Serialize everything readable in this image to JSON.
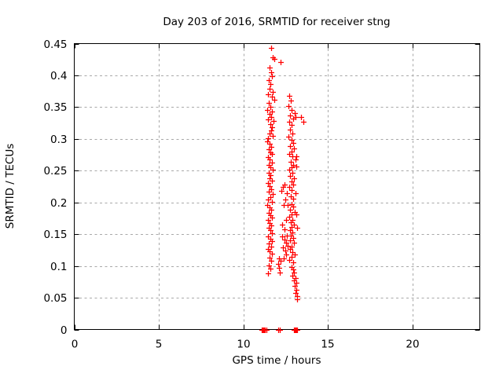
{
  "chart_data": {
    "type": "scatter",
    "title": "Day 203 of 2016, SRMTID for receiver stng",
    "xlabel": "GPS time / hours",
    "ylabel": "SRMTID / TECUs",
    "xlim": [
      0,
      24
    ],
    "ylim": [
      0,
      0.45
    ],
    "xticks": [
      0,
      5,
      10,
      15,
      20
    ],
    "yticks": [
      0,
      0.05,
      0.1,
      0.15,
      0.2,
      0.25,
      0.3,
      0.35,
      0.4,
      0.45
    ],
    "grid": true,
    "grid_style": "dashed",
    "grid_color": "#a8a8a8",
    "border_color": "#000000",
    "legend": false,
    "marker": "plus",
    "marker_color": "#ff0000",
    "marker_size": 7,
    "points": [
      [
        11.65,
        0.443
      ],
      [
        11.73,
        0.428
      ],
      [
        11.86,
        0.426
      ],
      [
        12.23,
        0.421
      ],
      [
        11.55,
        0.412
      ],
      [
        11.65,
        0.405
      ],
      [
        11.7,
        0.399
      ],
      [
        11.52,
        0.392
      ],
      [
        11.62,
        0.386
      ],
      [
        11.58,
        0.379
      ],
      [
        11.75,
        0.374
      ],
      [
        11.45,
        0.37
      ],
      [
        11.68,
        0.366
      ],
      [
        11.82,
        0.361
      ],
      [
        11.5,
        0.357
      ],
      [
        11.6,
        0.351
      ],
      [
        11.44,
        0.346
      ],
      [
        11.72,
        0.343
      ],
      [
        11.56,
        0.339
      ],
      [
        11.66,
        0.335
      ],
      [
        11.48,
        0.331
      ],
      [
        11.77,
        0.328
      ],
      [
        11.59,
        0.323
      ],
      [
        11.7,
        0.318
      ],
      [
        11.63,
        0.313
      ],
      [
        11.54,
        0.309
      ],
      [
        11.74,
        0.305
      ],
      [
        11.47,
        0.301
      ],
      [
        12.72,
        0.368
      ],
      [
        12.8,
        0.36
      ],
      [
        12.68,
        0.352
      ],
      [
        12.88,
        0.345
      ],
      [
        12.75,
        0.337
      ],
      [
        13.05,
        0.341
      ],
      [
        12.95,
        0.332
      ],
      [
        12.7,
        0.327
      ],
      [
        12.85,
        0.322
      ],
      [
        13.1,
        0.334
      ],
      [
        13.44,
        0.334
      ],
      [
        13.56,
        0.327
      ],
      [
        12.78,
        0.315
      ],
      [
        12.9,
        0.308
      ],
      [
        12.66,
        0.303
      ],
      [
        11.42,
        0.296
      ],
      [
        11.55,
        0.292
      ],
      [
        11.65,
        0.288
      ],
      [
        11.5,
        0.284
      ],
      [
        11.6,
        0.279
      ],
      [
        11.72,
        0.276
      ],
      [
        11.46,
        0.271
      ],
      [
        11.58,
        0.268
      ],
      [
        11.68,
        0.263
      ],
      [
        11.53,
        0.259
      ],
      [
        11.62,
        0.255
      ],
      [
        11.75,
        0.252
      ],
      [
        12.85,
        0.298
      ],
      [
        12.95,
        0.293
      ],
      [
        12.75,
        0.289
      ],
      [
        13.0,
        0.285
      ],
      [
        12.88,
        0.28
      ],
      [
        12.7,
        0.276
      ],
      [
        12.92,
        0.272
      ],
      [
        13.08,
        0.268
      ],
      [
        12.8,
        0.264
      ],
      [
        12.96,
        0.259
      ],
      [
        12.86,
        0.255
      ],
      [
        12.74,
        0.251
      ],
      [
        13.15,
        0.257
      ],
      [
        13.16,
        0.273
      ],
      [
        11.5,
        0.247
      ],
      [
        11.62,
        0.243
      ],
      [
        11.55,
        0.238
      ],
      [
        11.7,
        0.234
      ],
      [
        11.45,
        0.23
      ],
      [
        11.58,
        0.226
      ],
      [
        11.66,
        0.221
      ],
      [
        11.52,
        0.217
      ],
      [
        11.74,
        0.213
      ],
      [
        11.6,
        0.208
      ],
      [
        11.48,
        0.204
      ],
      [
        11.68,
        0.201
      ],
      [
        12.9,
        0.247
      ],
      [
        12.78,
        0.242
      ],
      [
        13.02,
        0.238
      ],
      [
        12.86,
        0.233
      ],
      [
        12.96,
        0.228
      ],
      [
        12.72,
        0.224
      ],
      [
        12.88,
        0.219
      ],
      [
        13.1,
        0.215
      ],
      [
        12.8,
        0.21
      ],
      [
        12.94,
        0.206
      ],
      [
        12.35,
        0.225
      ],
      [
        12.25,
        0.218
      ],
      [
        12.5,
        0.205
      ],
      [
        12.6,
        0.215
      ],
      [
        12.44,
        0.228
      ],
      [
        11.44,
        0.196
      ],
      [
        11.56,
        0.192
      ],
      [
        11.65,
        0.188
      ],
      [
        11.5,
        0.184
      ],
      [
        11.6,
        0.18
      ],
      [
        11.72,
        0.176
      ],
      [
        11.47,
        0.172
      ],
      [
        11.58,
        0.168
      ],
      [
        11.66,
        0.164
      ],
      [
        11.53,
        0.16
      ],
      [
        11.62,
        0.156
      ],
      [
        11.7,
        0.152
      ],
      [
        12.84,
        0.197
      ],
      [
        12.95,
        0.193
      ],
      [
        12.75,
        0.189
      ],
      [
        13.05,
        0.185
      ],
      [
        12.88,
        0.181
      ],
      [
        12.7,
        0.177
      ],
      [
        12.92,
        0.173
      ],
      [
        12.8,
        0.169
      ],
      [
        12.98,
        0.165
      ],
      [
        12.86,
        0.161
      ],
      [
        12.76,
        0.157
      ],
      [
        12.9,
        0.153
      ],
      [
        13.12,
        0.181
      ],
      [
        13.2,
        0.16
      ],
      [
        12.4,
        0.196
      ],
      [
        12.3,
        0.165
      ],
      [
        12.55,
        0.172
      ],
      [
        12.65,
        0.196
      ],
      [
        12.45,
        0.158
      ],
      [
        11.48,
        0.147
      ],
      [
        11.6,
        0.143
      ],
      [
        11.7,
        0.139
      ],
      [
        11.52,
        0.135
      ],
      [
        11.64,
        0.131
      ],
      [
        11.45,
        0.127
      ],
      [
        11.58,
        0.123
      ],
      [
        11.68,
        0.119
      ],
      [
        12.3,
        0.146
      ],
      [
        12.42,
        0.141
      ],
      [
        12.55,
        0.137
      ],
      [
        12.35,
        0.129
      ],
      [
        12.48,
        0.124
      ],
      [
        12.58,
        0.148
      ],
      [
        12.52,
        0.118
      ],
      [
        12.62,
        0.132
      ],
      [
        12.38,
        0.112
      ],
      [
        12.82,
        0.148
      ],
      [
        12.94,
        0.144
      ],
      [
        12.75,
        0.14
      ],
      [
        13.0,
        0.136
      ],
      [
        12.88,
        0.131
      ],
      [
        12.78,
        0.127
      ],
      [
        12.92,
        0.122
      ],
      [
        13.05,
        0.118
      ],
      [
        12.85,
        0.114
      ],
      [
        12.7,
        0.11
      ],
      [
        12.96,
        0.106
      ],
      [
        11.55,
        0.113
      ],
      [
        11.65,
        0.108
      ],
      [
        11.49,
        0.101
      ],
      [
        12.05,
        0.103
      ],
      [
        12.12,
        0.097
      ],
      [
        12.2,
        0.108
      ],
      [
        12.1,
        0.112
      ],
      [
        12.16,
        0.09
      ],
      [
        11.6,
        0.096
      ],
      [
        11.48,
        0.089
      ],
      [
        12.88,
        0.098
      ],
      [
        12.95,
        0.094
      ],
      [
        13.02,
        0.09
      ],
      [
        12.9,
        0.085
      ],
      [
        13.08,
        0.081
      ],
      [
        12.98,
        0.077
      ],
      [
        13.12,
        0.073
      ],
      [
        13.05,
        0.068
      ],
      [
        13.15,
        0.063
      ],
      [
        13.1,
        0.058
      ],
      [
        13.2,
        0.053
      ],
      [
        13.18,
        0.047
      ],
      [
        11.1,
        0
      ],
      [
        11.15,
        0
      ],
      [
        11.2,
        0
      ],
      [
        11.25,
        0
      ],
      [
        11.3,
        0
      ],
      [
        11.35,
        0
      ],
      [
        12.05,
        0
      ],
      [
        12.16,
        0
      ],
      [
        13.0,
        0
      ],
      [
        13.05,
        0
      ],
      [
        13.1,
        0
      ],
      [
        13.15,
        0
      ],
      [
        13.2,
        0
      ]
    ]
  }
}
